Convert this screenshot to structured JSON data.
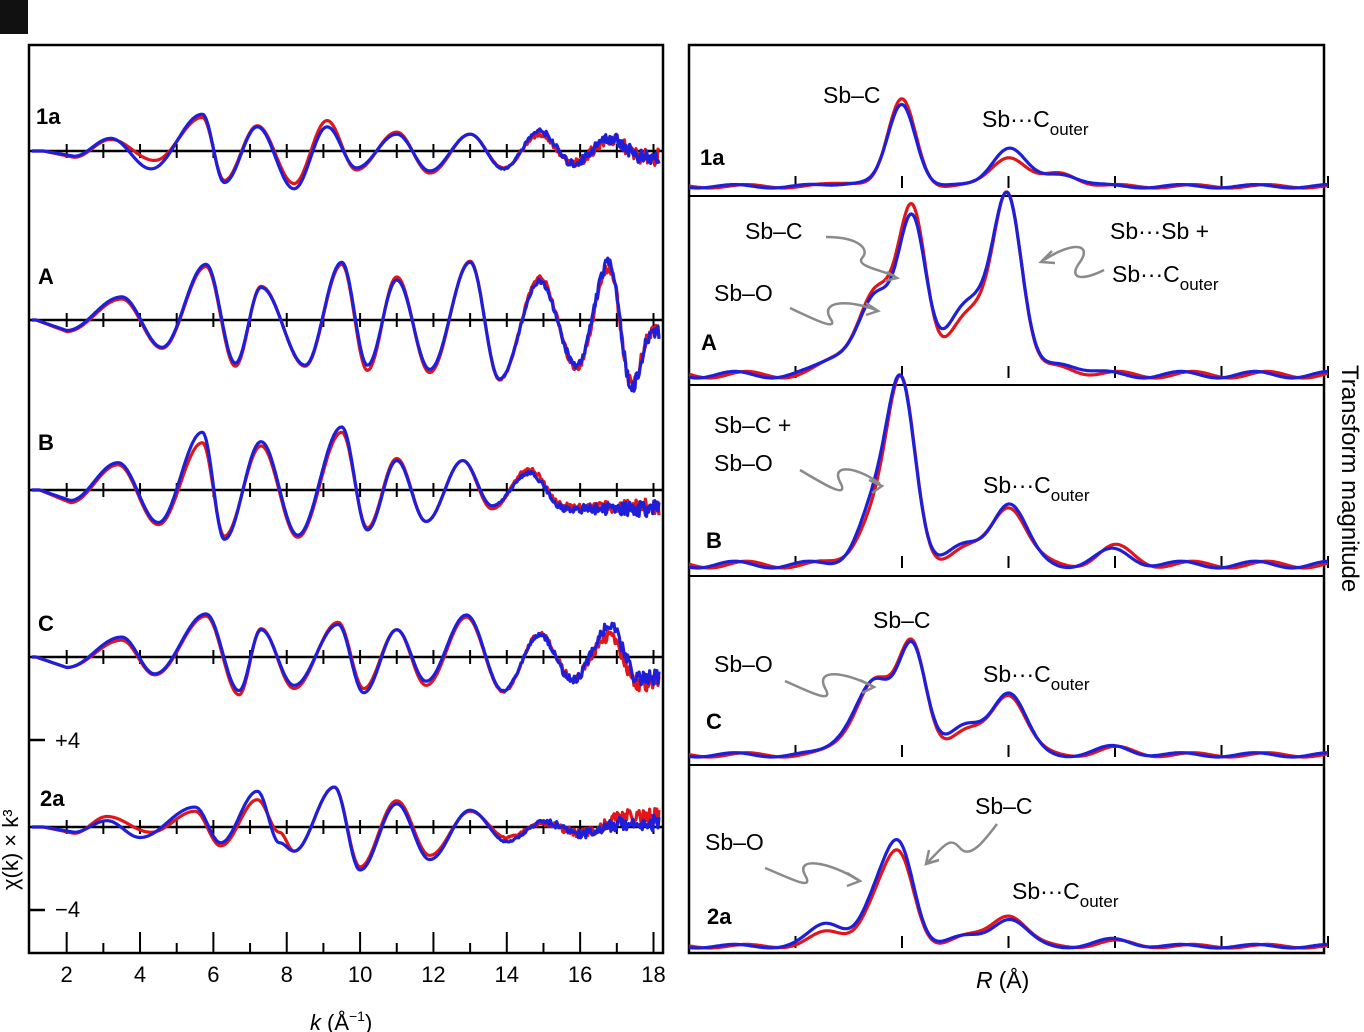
{
  "colors": {
    "series_red": "#e0161b",
    "series_blue": "#1f1fd9",
    "axis": "#000000",
    "annotation_arrow": "#8a8a8a"
  },
  "left_panel": {
    "ylabel": "χ(k) × k³",
    "xlabel_italic": "k",
    "xlabel_unit": "(Å",
    "xlabel_sup": "−1",
    "xlabel_close": ")",
    "scale_plus": "+4",
    "scale_minus": "−4",
    "xtick_labels": [
      "2",
      "4",
      "6",
      "8",
      "10",
      "12",
      "14",
      "16",
      "18"
    ],
    "trace_labels": [
      "1a",
      "A",
      "B",
      "C",
      "2a"
    ]
  },
  "right_panel": {
    "ylabel": "Transform magnitude",
    "xlabel_italic": "R",
    "xlabel_unit": "(Å)",
    "panel_labels": [
      "1a",
      "A",
      "B",
      "C",
      "2a"
    ],
    "annotations": {
      "p1_sbc": "Sb–C",
      "p1_outer": "Sb···C",
      "p1_outer_sub": "outer",
      "p2_sbc": "Sb–C",
      "p2_sbo": "Sb–O",
      "p2_sbsb": "Sb···Sb +",
      "p2_outer": "Sb···C",
      "p2_outer_sub": "outer",
      "p3_sbc": "Sb–C +",
      "p3_sbo": "Sb–O",
      "p3_outer": "Sb···C",
      "p3_outer_sub": "outer",
      "p4_sbc": "Sb–C",
      "p4_sbo": "Sb–O",
      "p4_outer": "Sb···C",
      "p4_outer_sub": "outer",
      "p5_sbc": "Sb–C",
      "p5_sbo": "Sb–O",
      "p5_outer": "Sb···C",
      "p5_outer_sub": "outer"
    }
  },
  "chart_data": [
    {
      "type": "line",
      "title": "",
      "xlabel": "k (Å−1)",
      "ylabel": "χ(k) × k³",
      "xlim": [
        1,
        18.2
      ],
      "scale_bar": [
        -4,
        4
      ],
      "xticks": [
        2,
        4,
        6,
        8,
        10,
        12,
        14,
        16,
        18
      ],
      "series_colors": [
        "red",
        "blue"
      ],
      "traces": [
        {
          "label": "1a",
          "peaks_k": [
            3.2,
            5.7,
            7.2,
            9.1,
            11.0,
            13.0,
            14.9,
            16.8
          ],
          "red_extrema": [
            [
              2.2,
              -0.6
            ],
            [
              3.2,
              1.1
            ],
            [
              4.4,
              -0.9
            ],
            [
              5.7,
              3.2
            ],
            [
              6.3,
              -2.8
            ],
            [
              7.2,
              2.4
            ],
            [
              8.2,
              -3.1
            ],
            [
              9.1,
              2.9
            ],
            [
              9.9,
              -1.8
            ],
            [
              11.0,
              1.8
            ],
            [
              11.9,
              -2.1
            ],
            [
              13.0,
              1.6
            ],
            [
              13.9,
              -1.6
            ],
            [
              14.9,
              1.6
            ],
            [
              15.8,
              -1.2
            ],
            [
              16.8,
              1.0
            ],
            [
              17.8,
              -0.6
            ]
          ],
          "blue_extrema": [
            [
              2.2,
              -0.5
            ],
            [
              3.2,
              1.2
            ],
            [
              4.3,
              -1.7
            ],
            [
              5.7,
              3.5
            ],
            [
              6.3,
              -3.0
            ],
            [
              7.2,
              2.3
            ],
            [
              8.2,
              -3.6
            ],
            [
              9.1,
              2.3
            ],
            [
              9.9,
              -1.6
            ],
            [
              11.0,
              1.6
            ],
            [
              11.9,
              -1.9
            ],
            [
              13.0,
              1.6
            ],
            [
              13.9,
              -1.7
            ],
            [
              14.9,
              1.9
            ],
            [
              15.8,
              -1.2
            ],
            [
              16.8,
              1.2
            ],
            [
              17.8,
              -0.7
            ]
          ]
        },
        {
          "label": "A",
          "peaks_k": [
            3.5,
            5.8,
            7.3,
            9.5,
            11.0,
            13.0,
            14.9,
            16.8
          ],
          "red_extrema": [
            [
              2.0,
              -1.1
            ],
            [
              3.5,
              2.0
            ],
            [
              4.6,
              -2.7
            ],
            [
              5.8,
              5.1
            ],
            [
              6.6,
              -4.4
            ],
            [
              7.3,
              3.2
            ],
            [
              8.5,
              -4.4
            ],
            [
              9.5,
              5.3
            ],
            [
              10.2,
              -4.8
            ],
            [
              11.0,
              4.1
            ],
            [
              11.9,
              -5.0
            ],
            [
              13.0,
              5.6
            ],
            [
              13.8,
              -5.7
            ],
            [
              14.9,
              4.0
            ],
            [
              15.9,
              -4.5
            ],
            [
              16.8,
              5.0
            ],
            [
              17.4,
              -6.0
            ],
            [
              18.0,
              -1.0
            ]
          ],
          "blue_extrema": [
            [
              2.0,
              -1.0
            ],
            [
              3.5,
              2.2
            ],
            [
              4.6,
              -2.6
            ],
            [
              5.8,
              5.3
            ],
            [
              6.6,
              -4.1
            ],
            [
              7.3,
              3.1
            ],
            [
              8.5,
              -4.3
            ],
            [
              9.5,
              5.5
            ],
            [
              10.2,
              -4.3
            ],
            [
              11.0,
              3.8
            ],
            [
              11.9,
              -4.7
            ],
            [
              13.0,
              5.5
            ],
            [
              13.8,
              -5.6
            ],
            [
              14.9,
              3.7
            ],
            [
              15.9,
              -4.3
            ],
            [
              16.8,
              5.5
            ],
            [
              17.4,
              -6.3
            ],
            [
              18.0,
              -1.0
            ]
          ]
        },
        {
          "label": "B",
          "peaks_k": [
            3.4,
            5.7,
            7.3,
            9.5,
            11.0,
            12.8,
            14.6
          ],
          "red_extrema": [
            [
              2.1,
              -1.2
            ],
            [
              3.4,
              2.4
            ],
            [
              4.5,
              -3.3
            ],
            [
              5.7,
              4.5
            ],
            [
              6.3,
              -4.4
            ],
            [
              7.3,
              4.2
            ],
            [
              8.3,
              -4.5
            ],
            [
              9.5,
              5.5
            ],
            [
              10.2,
              -3.6
            ],
            [
              11.0,
              3.0
            ],
            [
              11.8,
              -3.0
            ],
            [
              12.8,
              2.8
            ],
            [
              13.6,
              -1.8
            ],
            [
              14.6,
              2.0
            ],
            [
              15.6,
              -1.6
            ]
          ],
          "blue_extrema": [
            [
              2.1,
              -1.0
            ],
            [
              3.4,
              2.6
            ],
            [
              4.5,
              -3.1
            ],
            [
              5.7,
              5.5
            ],
            [
              6.3,
              -4.7
            ],
            [
              7.3,
              4.6
            ],
            [
              8.3,
              -4.3
            ],
            [
              9.5,
              6.0
            ],
            [
              10.2,
              -3.8
            ],
            [
              11.0,
              2.8
            ],
            [
              11.8,
              -3.0
            ],
            [
              12.8,
              2.8
            ],
            [
              13.6,
              -1.5
            ],
            [
              14.6,
              1.6
            ],
            [
              15.6,
              -1.8
            ]
          ]
        },
        {
          "label": "C",
          "peaks_k": [
            3.5,
            5.8,
            7.3,
            9.4,
            11.0,
            12.9,
            14.9,
            16.8
          ],
          "red_extrema": [
            [
              2.0,
              -1.0
            ],
            [
              3.5,
              1.6
            ],
            [
              4.4,
              -1.7
            ],
            [
              5.8,
              3.9
            ],
            [
              6.7,
              -3.6
            ],
            [
              7.3,
              2.7
            ],
            [
              8.2,
              -3.0
            ],
            [
              9.4,
              3.3
            ],
            [
              10.1,
              -3.0
            ],
            [
              11.0,
              2.6
            ],
            [
              11.8,
              -2.7
            ],
            [
              12.9,
              3.8
            ],
            [
              13.9,
              -3.3
            ],
            [
              14.9,
              2.2
            ],
            [
              15.8,
              -2.0
            ],
            [
              16.8,
              2.0
            ],
            [
              17.6,
              -2.5
            ]
          ],
          "blue_extrema": [
            [
              2.0,
              -1.0
            ],
            [
              3.5,
              1.9
            ],
            [
              4.4,
              -1.6
            ],
            [
              5.8,
              4.1
            ],
            [
              6.7,
              -3.2
            ],
            [
              7.3,
              2.6
            ],
            [
              8.2,
              -2.7
            ],
            [
              9.4,
              3.1
            ],
            [
              10.1,
              -3.4
            ],
            [
              11.0,
              2.6
            ],
            [
              11.8,
              -2.3
            ],
            [
              12.9,
              4.0
            ],
            [
              13.9,
              -3.2
            ],
            [
              14.9,
              2.1
            ],
            [
              15.8,
              -2.2
            ],
            [
              16.8,
              2.9
            ],
            [
              17.6,
              -2.0
            ]
          ]
        },
        {
          "label": "2a",
          "peaks_k": [
            5.5,
            7.2,
            9.3,
            11.0,
            13.0
          ],
          "red_extrema": [
            [
              2.2,
              -0.6
            ],
            [
              3.1,
              1.0
            ],
            [
              4.3,
              -0.5
            ],
            [
              5.5,
              1.5
            ],
            [
              6.2,
              -1.8
            ],
            [
              7.2,
              2.6
            ],
            [
              7.8,
              -0.5
            ],
            [
              8.2,
              -2.3
            ],
            [
              9.3,
              3.8
            ],
            [
              10.0,
              -3.8
            ],
            [
              11.0,
              2.5
            ],
            [
              11.9,
              -2.7
            ],
            [
              13.0,
              1.5
            ],
            [
              14.0,
              -1.0
            ],
            [
              15.0,
              0.4
            ],
            [
              16.0,
              -0.6
            ],
            [
              17.3,
              1.0
            ]
          ],
          "blue_extrema": [
            [
              2.2,
              -0.5
            ],
            [
              3.1,
              0.6
            ],
            [
              4.0,
              -1.0
            ],
            [
              5.5,
              1.9
            ],
            [
              6.2,
              -1.5
            ],
            [
              7.2,
              3.4
            ],
            [
              7.8,
              -1.5
            ],
            [
              8.2,
              -2.3
            ],
            [
              9.3,
              3.8
            ],
            [
              10.0,
              -4.1
            ],
            [
              11.0,
              2.2
            ],
            [
              11.9,
              -3.1
            ],
            [
              13.0,
              1.6
            ],
            [
              14.0,
              -1.4
            ],
            [
              15.0,
              0.5
            ],
            [
              16.0,
              -0.6
            ],
            [
              17.3,
              0.4
            ]
          ]
        }
      ]
    },
    {
      "type": "line",
      "title": "",
      "xlabel": "R (Å)",
      "ylabel": "Transform magnitude",
      "xticks_R": [
        1,
        2,
        3,
        4,
        5,
        6
      ],
      "xlim": [
        0,
        6.0
      ],
      "series_colors": [
        "red",
        "blue"
      ],
      "panels": [
        {
          "label": "1a",
          "red_peaks": [
            [
              1.55,
              0.05
            ],
            [
              2.0,
              1.0
            ],
            [
              3.0,
              0.35
            ],
            [
              3.5,
              0.15
            ]
          ],
          "blue_peaks": [
            [
              1.55,
              0.05
            ],
            [
              2.0,
              0.95
            ],
            [
              3.0,
              0.45
            ],
            [
              3.5,
              0.15
            ]
          ]
        },
        {
          "label": "A",
          "red_peaks": [
            [
              1.4,
              0.08
            ],
            [
              1.75,
              0.5
            ],
            [
              2.1,
              0.98
            ],
            [
              2.55,
              0.25
            ],
            [
              2.8,
              0.25
            ],
            [
              3.0,
              1.0
            ],
            [
              3.5,
              0.05
            ]
          ],
          "blue_peaks": [
            [
              1.4,
              0.1
            ],
            [
              1.75,
              0.45
            ],
            [
              2.1,
              0.94
            ],
            [
              2.55,
              0.3
            ],
            [
              2.8,
              0.3
            ],
            [
              3.0,
              0.96
            ],
            [
              3.5,
              0.08
            ]
          ]
        },
        {
          "label": "B",
          "red_peaks": [
            [
              1.75,
              0.3
            ],
            [
              2.0,
              1.0
            ],
            [
              2.6,
              0.08
            ],
            [
              3.0,
              0.35
            ],
            [
              4.0,
              0.1
            ]
          ],
          "blue_peaks": [
            [
              1.75,
              0.35
            ],
            [
              2.0,
              1.0
            ],
            [
              2.6,
              0.1
            ],
            [
              3.0,
              0.36
            ],
            [
              4.0,
              0.08
            ]
          ]
        },
        {
          "label": "C",
          "red_peaks": [
            [
              1.5,
              0.1
            ],
            [
              1.75,
              0.66
            ],
            [
              2.1,
              1.0
            ],
            [
              2.6,
              0.2
            ],
            [
              3.0,
              0.56
            ],
            [
              4.0,
              0.06
            ]
          ],
          "blue_peaks": [
            [
              1.5,
              0.15
            ],
            [
              1.75,
              0.62
            ],
            [
              2.1,
              1.0
            ],
            [
              2.6,
              0.25
            ],
            [
              3.0,
              0.57
            ],
            [
              4.0,
              0.07
            ]
          ]
        },
        {
          "label": "2a",
          "red_peaks": [
            [
              1.3,
              0.15
            ],
            [
              1.8,
              0.55
            ],
            [
              2.0,
              0.75
            ],
            [
              2.6,
              0.1
            ],
            [
              3.0,
              0.35
            ],
            [
              4.0,
              0.05
            ]
          ],
          "blue_peaks": [
            [
              1.3,
              0.25
            ],
            [
              1.8,
              0.6
            ],
            [
              2.0,
              0.85
            ],
            [
              2.6,
              0.1
            ],
            [
              3.0,
              0.3
            ],
            [
              4.0,
              0.07
            ]
          ]
        }
      ]
    }
  ]
}
